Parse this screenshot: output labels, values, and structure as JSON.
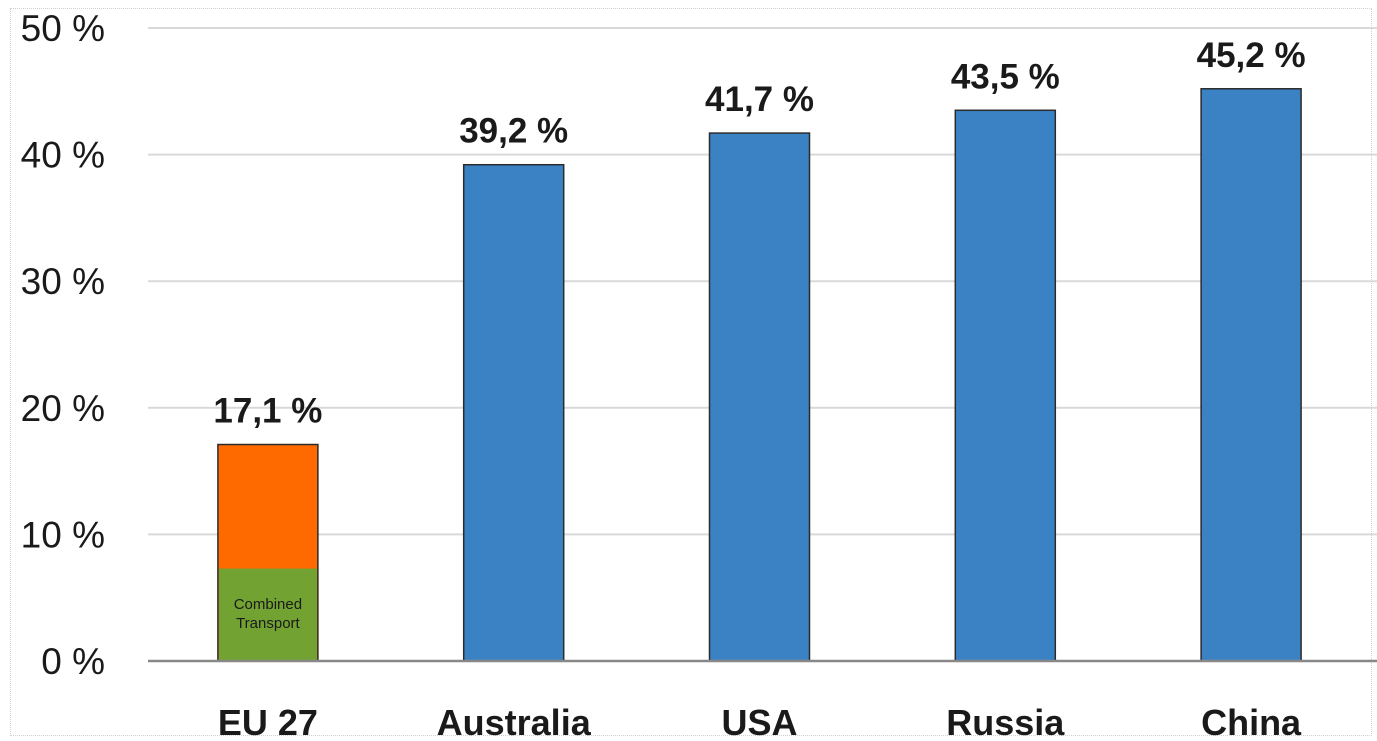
{
  "chart_data": {
    "type": "bar",
    "categories": [
      "EU 27",
      "Australia",
      "USA",
      "Russia",
      "China"
    ],
    "values": [
      17.1,
      39.2,
      41.7,
      43.5,
      45.2
    ],
    "data_labels": [
      "17,1 %",
      "39,2 %",
      "41,7 %",
      "43,5 %",
      "45,2 %"
    ],
    "segments": [
      {
        "category": "EU 27",
        "label": "Combined Transport",
        "value": 7.3,
        "color": "#72A232"
      }
    ],
    "ylim": [
      0,
      50
    ],
    "yticks": [
      0,
      10,
      20,
      30,
      40,
      50
    ],
    "ytick_labels": [
      "0 %",
      "10 %",
      "20 %",
      "30 %",
      "40 %",
      "50 %"
    ],
    "grid": true,
    "colors": {
      "default_bar": "#3A82C4",
      "eu_bar": "#FF6A00",
      "grid": "#d9d9d9",
      "axis": "#888888"
    }
  }
}
